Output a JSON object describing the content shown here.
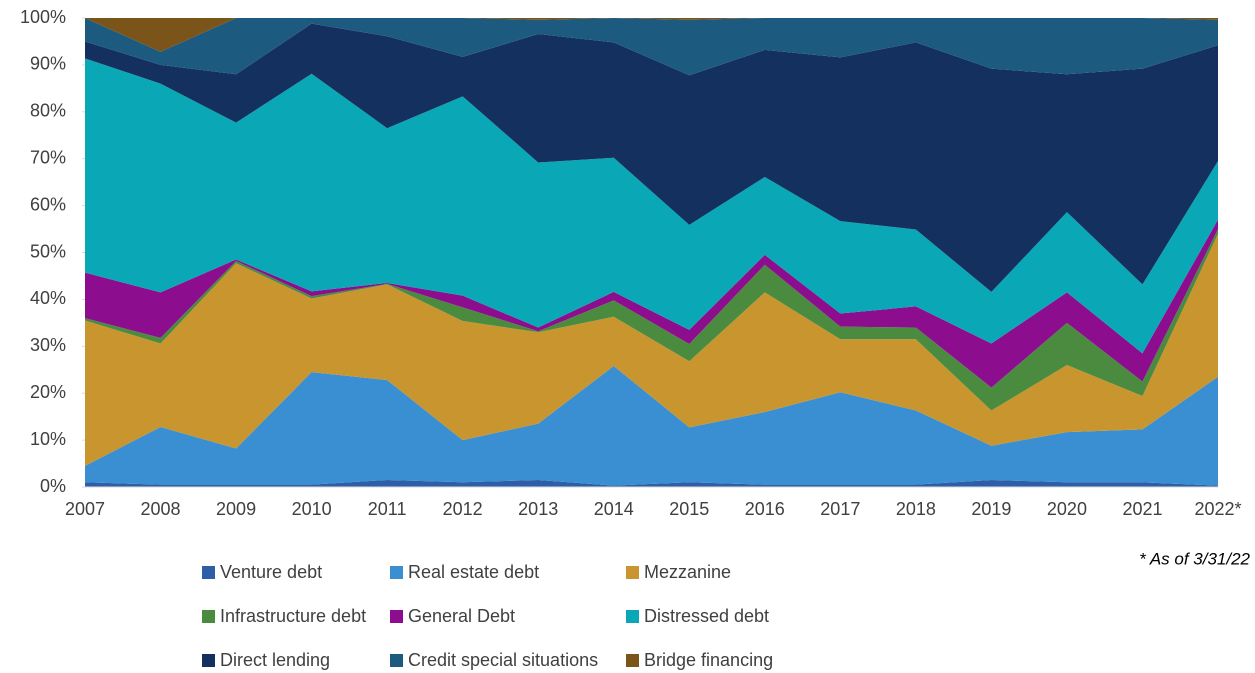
{
  "chart_data": {
    "type": "stacked_area",
    "categories": [
      "2007",
      "2008",
      "2009",
      "2010",
      "2011",
      "2012",
      "2013",
      "2014",
      "2015",
      "2016",
      "2017",
      "2018",
      "2019",
      "2020",
      "2021",
      "2022*"
    ],
    "ylim": [
      0,
      100
    ],
    "yticks": [
      {
        "value": 0,
        "label": "0%"
      },
      {
        "value": 10,
        "label": "10%"
      },
      {
        "value": 20,
        "label": "20%"
      },
      {
        "value": 30,
        "label": "30%"
      },
      {
        "value": 40,
        "label": "40%"
      },
      {
        "value": 50,
        "label": "50%"
      },
      {
        "value": 60,
        "label": "60%"
      },
      {
        "value": 70,
        "label": "70%"
      },
      {
        "value": 80,
        "label": "80%"
      },
      {
        "value": 90,
        "label": "90%"
      },
      {
        "value": 100,
        "label": "100%"
      }
    ],
    "annotation": "* As of 3/31/22",
    "series": [
      {
        "name": "Venture debt",
        "color": "#2e5ea8",
        "values": [
          1,
          0.5,
          0.5,
          0.5,
          1.5,
          1,
          1.5,
          0.3,
          1,
          0.5,
          0.5,
          0.5,
          1.5,
          1,
          1,
          0.3
        ]
      },
      {
        "name": "Real estate debt",
        "color": "#3a8fd2",
        "values": [
          3.5,
          12.3,
          7.7,
          24,
          21.3,
          9,
          12,
          25.5,
          11.7,
          15.5,
          19.7,
          15.8,
          7.3,
          10.7,
          11.3,
          23.2
        ]
      },
      {
        "name": "Mezzanine",
        "color": "#c8952e",
        "values": [
          31,
          17.8,
          39.5,
          15.7,
          20.4,
          25.4,
          19.5,
          10.5,
          14.1,
          25.5,
          11.3,
          15.2,
          7.5,
          14.3,
          7.1,
          30.5
        ]
      },
      {
        "name": "Infrastructure debt",
        "color": "#4b8b3f",
        "values": [
          0.5,
          1.2,
          0.5,
          0.5,
          0.1,
          2.9,
          0.2,
          3.5,
          3.7,
          5.9,
          2.7,
          2.5,
          4.9,
          9,
          3.1,
          1
        ]
      },
      {
        "name": "General Debt",
        "color": "#8c0d8e",
        "values": [
          9.7,
          9.7,
          0.3,
          1,
          0.2,
          2.5,
          0.8,
          1.8,
          3,
          2.1,
          2.8,
          4.5,
          9.4,
          6.5,
          6,
          2
        ]
      },
      {
        "name": "Distressed debt",
        "color": "#0aa7b7",
        "values": [
          45.7,
          44.5,
          29.2,
          46.4,
          33,
          42.5,
          35.2,
          28.6,
          22.4,
          16.6,
          19.7,
          16.4,
          11,
          17.1,
          14.7,
          12.5
        ]
      },
      {
        "name": "Direct lending",
        "color": "#13305f",
        "values": [
          3.6,
          4,
          10.3,
          10.7,
          19.6,
          8.4,
          27.4,
          24.6,
          31.9,
          27.1,
          34.9,
          39.9,
          47.6,
          29.4,
          46,
          24.7
        ]
      },
      {
        "name": "Credit special situations",
        "color": "#1d5a80",
        "values": [
          5,
          2.8,
          12,
          1.2,
          3.9,
          8.3,
          3,
          5.2,
          11.8,
          6.8,
          8.4,
          5.2,
          10.8,
          12,
          10.8,
          5.4
        ]
      },
      {
        "name": "Bridge financing",
        "color": "#7a5419",
        "values": [
          0,
          7.2,
          0,
          0,
          0,
          0,
          0.4,
          0,
          0.4,
          0,
          0,
          0,
          0,
          0,
          0,
          0.4
        ]
      }
    ]
  }
}
